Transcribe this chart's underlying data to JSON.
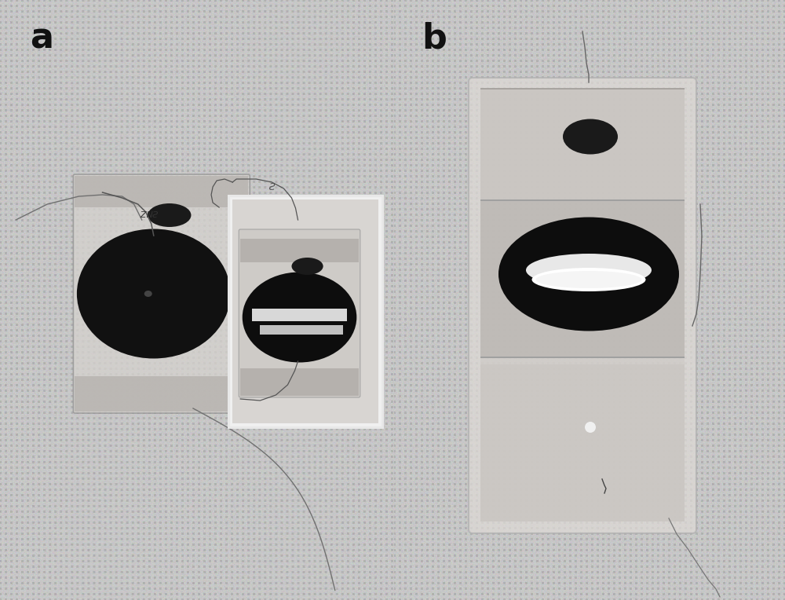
{
  "figsize": [
    10.0,
    7.64
  ],
  "dpi": 100,
  "bg_color_light": "#c8c8c8",
  "bg_dot_color": "#b0b0b0",
  "label_a": "a",
  "label_b": "b",
  "label_fontsize": 32,
  "label_color": "#111111",
  "label_weight": "bold",
  "divider_color": "#aaaaaa",
  "divider_lw": 2,
  "panel_split": 0.502
}
